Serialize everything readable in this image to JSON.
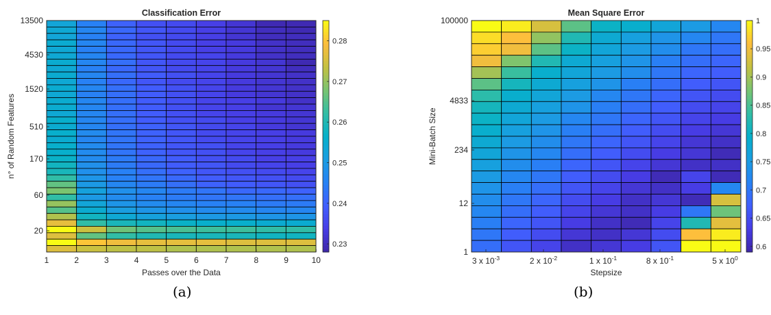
{
  "chart_data": [
    {
      "type": "heatmap",
      "title": "Classification Error",
      "xlabel": "Passes over the Data",
      "ylabel": "n° of Random Features",
      "x_ticks": [
        "1",
        "2",
        "3",
        "4",
        "5",
        "6",
        "7",
        "8",
        "9",
        "10"
      ],
      "y_ticks": [
        "13500",
        "4530",
        "1520",
        "510",
        "170",
        "60",
        "20"
      ],
      "colorbar": {
        "range": [
          0.228,
          0.285
        ],
        "ticks": [
          "0.23",
          "0.24",
          "0.25",
          "0.26",
          "0.27",
          "0.28"
        ]
      },
      "rows": 36,
      "cols": 9,
      "values": [
        [
          0.253,
          0.245,
          0.24,
          0.237,
          0.236,
          0.234,
          0.232,
          0.229,
          0.229
        ],
        [
          0.254,
          0.246,
          0.241,
          0.238,
          0.236,
          0.234,
          0.232,
          0.23,
          0.229
        ],
        [
          0.253,
          0.245,
          0.24,
          0.237,
          0.236,
          0.234,
          0.232,
          0.23,
          0.23
        ],
        [
          0.255,
          0.246,
          0.241,
          0.238,
          0.236,
          0.234,
          0.233,
          0.231,
          0.23
        ],
        [
          0.254,
          0.245,
          0.241,
          0.238,
          0.236,
          0.234,
          0.233,
          0.231,
          0.23
        ],
        [
          0.254,
          0.246,
          0.241,
          0.238,
          0.236,
          0.235,
          0.233,
          0.231,
          0.23
        ],
        [
          0.255,
          0.246,
          0.242,
          0.238,
          0.236,
          0.235,
          0.233,
          0.232,
          0.229
        ],
        [
          0.254,
          0.245,
          0.241,
          0.238,
          0.236,
          0.235,
          0.233,
          0.232,
          0.23
        ],
        [
          0.255,
          0.246,
          0.242,
          0.239,
          0.237,
          0.235,
          0.233,
          0.232,
          0.231
        ],
        [
          0.254,
          0.245,
          0.241,
          0.238,
          0.236,
          0.235,
          0.233,
          0.232,
          0.231
        ],
        [
          0.255,
          0.246,
          0.242,
          0.239,
          0.237,
          0.235,
          0.233,
          0.232,
          0.231
        ],
        [
          0.254,
          0.245,
          0.242,
          0.239,
          0.237,
          0.235,
          0.233,
          0.232,
          0.231
        ],
        [
          0.255,
          0.246,
          0.242,
          0.239,
          0.237,
          0.235,
          0.234,
          0.233,
          0.231
        ],
        [
          0.255,
          0.246,
          0.242,
          0.239,
          0.237,
          0.235,
          0.234,
          0.232,
          0.232
        ],
        [
          0.254,
          0.246,
          0.242,
          0.239,
          0.237,
          0.235,
          0.234,
          0.233,
          0.232
        ],
        [
          0.256,
          0.246,
          0.242,
          0.239,
          0.237,
          0.236,
          0.234,
          0.233,
          0.232
        ],
        [
          0.255,
          0.246,
          0.242,
          0.24,
          0.238,
          0.236,
          0.235,
          0.233,
          0.232
        ],
        [
          0.256,
          0.247,
          0.243,
          0.24,
          0.238,
          0.236,
          0.235,
          0.234,
          0.233
        ],
        [
          0.255,
          0.246,
          0.243,
          0.24,
          0.238,
          0.236,
          0.235,
          0.234,
          0.233
        ],
        [
          0.256,
          0.247,
          0.243,
          0.24,
          0.238,
          0.237,
          0.235,
          0.234,
          0.233
        ],
        [
          0.256,
          0.247,
          0.243,
          0.24,
          0.238,
          0.237,
          0.235,
          0.234,
          0.233
        ],
        [
          0.257,
          0.247,
          0.244,
          0.241,
          0.239,
          0.237,
          0.236,
          0.234,
          0.234
        ],
        [
          0.258,
          0.248,
          0.244,
          0.241,
          0.239,
          0.238,
          0.236,
          0.235,
          0.234
        ],
        [
          0.259,
          0.248,
          0.245,
          0.242,
          0.24,
          0.238,
          0.237,
          0.236,
          0.235
        ],
        [
          0.262,
          0.249,
          0.245,
          0.243,
          0.241,
          0.239,
          0.238,
          0.237,
          0.236
        ],
        [
          0.266,
          0.25,
          0.246,
          0.244,
          0.242,
          0.24,
          0.239,
          0.238,
          0.237
        ],
        [
          0.268,
          0.252,
          0.248,
          0.246,
          0.244,
          0.243,
          0.241,
          0.241,
          0.24
        ],
        [
          0.262,
          0.25,
          0.247,
          0.245,
          0.244,
          0.243,
          0.243,
          0.242,
          0.242
        ],
        [
          0.27,
          0.253,
          0.249,
          0.247,
          0.246,
          0.245,
          0.245,
          0.244,
          0.244
        ],
        [
          0.265,
          0.255,
          0.251,
          0.249,
          0.248,
          0.247,
          0.247,
          0.246,
          0.246
        ],
        [
          0.272,
          0.258,
          0.254,
          0.252,
          0.251,
          0.25,
          0.25,
          0.249,
          0.249
        ],
        [
          0.277,
          0.262,
          0.259,
          0.258,
          0.257,
          0.256,
          0.256,
          0.255,
          0.255
        ],
        [
          0.285,
          0.274,
          0.267,
          0.265,
          0.264,
          0.263,
          0.263,
          0.262,
          0.262
        ],
        [
          0.276,
          0.266,
          0.262,
          0.26,
          0.259,
          0.259,
          0.259,
          0.258,
          0.258
        ],
        [
          0.285,
          0.28,
          0.278,
          0.277,
          0.277,
          0.277,
          0.276,
          0.276,
          0.276
        ],
        [
          0.276,
          0.274,
          0.273,
          0.273,
          0.272,
          0.272,
          0.272,
          0.272,
          0.272
        ]
      ]
    },
    {
      "type": "heatmap",
      "title": "Mean Square Error",
      "xlabel": "Stepsize",
      "ylabel": "Mini-Batch Size",
      "x_ticks": [
        {
          "mantissa": "3 x 10",
          "exp": "-3"
        },
        {
          "mantissa": "2 x 10",
          "exp": "-2"
        },
        {
          "mantissa": "1 x 10",
          "exp": "-1"
        },
        {
          "mantissa": "8 x 10",
          "exp": "-1"
        },
        {
          "mantissa": "5 x 10",
          "exp": "0"
        }
      ],
      "y_ticks": [
        "100000",
        "4833",
        "234",
        "12",
        "1"
      ],
      "colorbar": {
        "range": [
          0.59,
          1.0
        ],
        "ticks": [
          "0.6",
          "0.65",
          "0.7",
          "0.75",
          "0.8",
          "0.85",
          "0.9",
          "0.95",
          "1"
        ]
      },
      "rows": 20,
      "cols": 9,
      "values": [
        [
          1.0,
          0.99,
          0.93,
          0.86,
          0.8,
          0.79,
          0.77,
          0.75,
          0.72
        ],
        [
          0.98,
          0.96,
          0.89,
          0.82,
          0.78,
          0.76,
          0.74,
          0.72,
          0.7
        ],
        [
          0.97,
          0.95,
          0.86,
          0.8,
          0.77,
          0.75,
          0.73,
          0.7,
          0.69
        ],
        [
          0.95,
          0.88,
          0.82,
          0.78,
          0.76,
          0.74,
          0.71,
          0.69,
          0.68
        ],
        [
          0.9,
          0.84,
          0.79,
          0.77,
          0.75,
          0.73,
          0.7,
          0.68,
          0.67
        ],
        [
          0.86,
          0.81,
          0.78,
          0.76,
          0.74,
          0.71,
          0.69,
          0.67,
          0.66
        ],
        [
          0.83,
          0.79,
          0.77,
          0.75,
          0.72,
          0.7,
          0.68,
          0.66,
          0.65
        ],
        [
          0.81,
          0.78,
          0.76,
          0.74,
          0.71,
          0.69,
          0.67,
          0.65,
          0.64
        ],
        [
          0.8,
          0.77,
          0.75,
          0.72,
          0.7,
          0.68,
          0.66,
          0.64,
          0.63
        ],
        [
          0.79,
          0.76,
          0.74,
          0.71,
          0.69,
          0.67,
          0.65,
          0.63,
          0.62
        ],
        [
          0.78,
          0.75,
          0.73,
          0.7,
          0.68,
          0.66,
          0.64,
          0.62,
          0.61
        ],
        [
          0.77,
          0.74,
          0.72,
          0.69,
          0.67,
          0.65,
          0.63,
          0.62,
          0.6
        ],
        [
          0.76,
          0.73,
          0.71,
          0.68,
          0.66,
          0.64,
          0.62,
          0.61,
          0.61
        ],
        [
          0.75,
          0.72,
          0.7,
          0.67,
          0.65,
          0.63,
          0.6,
          0.64,
          0.6
        ],
        [
          0.74,
          0.71,
          0.69,
          0.66,
          0.64,
          0.62,
          0.61,
          0.63,
          0.72
        ],
        [
          0.73,
          0.7,
          0.68,
          0.65,
          0.63,
          0.61,
          0.62,
          0.6,
          0.93
        ],
        [
          0.72,
          0.69,
          0.67,
          0.64,
          0.62,
          0.61,
          0.63,
          0.7,
          0.87
        ],
        [
          0.71,
          0.68,
          0.66,
          0.63,
          0.61,
          0.6,
          0.64,
          0.82,
          0.94
        ],
        [
          0.7,
          0.67,
          0.65,
          0.62,
          0.61,
          0.62,
          0.65,
          0.96,
          0.99
        ],
        [
          0.69,
          0.66,
          0.64,
          0.61,
          0.62,
          0.63,
          0.66,
          1.0,
          1.0
        ]
      ]
    }
  ],
  "sublabels": [
    "(a)",
    "(b)"
  ]
}
